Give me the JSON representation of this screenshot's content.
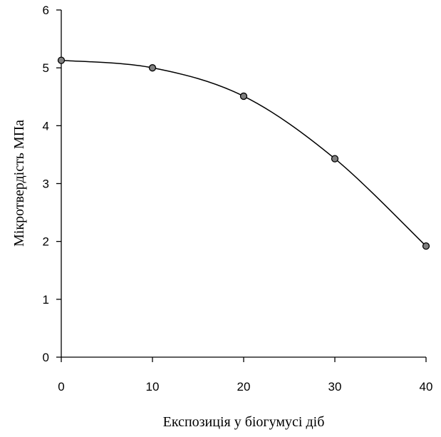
{
  "chart_data": {
    "type": "scatter",
    "xlabel": "Експозиція у біогумусі діб",
    "ylabel": "Мікротвердість МПа",
    "xlim": [
      0,
      40
    ],
    "ylim": [
      0,
      6
    ],
    "x_ticks": [
      "0",
      "10",
      "20",
      "30",
      "40"
    ],
    "y_ticks": [
      "0",
      "1",
      "2",
      "3",
      "4",
      "5",
      "6"
    ],
    "grid": false,
    "legend": "none",
    "series": [
      {
        "x": [
          0,
          10,
          20,
          30,
          40
        ],
        "y": [
          5.13,
          5.0,
          4.51,
          3.43,
          1.92
        ],
        "smooth": true,
        "marker_color": "#808080",
        "line_color": "#000000"
      }
    ]
  }
}
